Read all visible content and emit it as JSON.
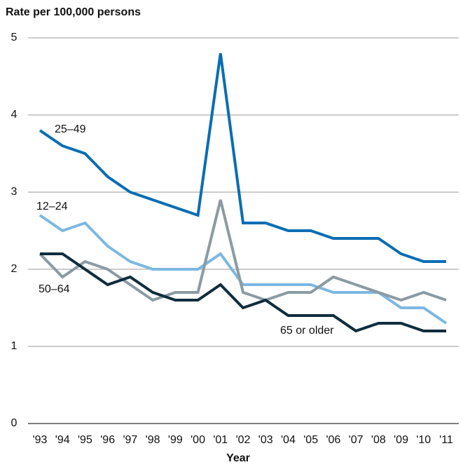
{
  "chart_data": {
    "type": "line",
    "ylabel": "Rate per 100,000 persons",
    "xlabel": "Year",
    "categories": [
      "'93",
      "'94",
      "'95",
      "'96",
      "'97",
      "'98",
      "'99",
      "'00",
      "'01",
      "'02",
      "'03",
      "'04",
      "'05",
      "'06",
      "'07",
      "'08",
      "'09",
      "'10",
      "'11"
    ],
    "series": [
      {
        "name": "25–49",
        "color": "#0a6db3",
        "values": [
          3.8,
          3.6,
          3.5,
          3.2,
          3.0,
          2.9,
          2.8,
          2.7,
          4.8,
          2.6,
          2.6,
          2.5,
          2.5,
          2.4,
          2.4,
          2.4,
          2.2,
          2.1,
          2.1
        ]
      },
      {
        "name": "12–24",
        "color": "#7cb8e2",
        "values": [
          2.7,
          2.5,
          2.6,
          2.3,
          2.1,
          2.0,
          2.0,
          2.0,
          2.2,
          1.8,
          1.8,
          1.8,
          1.8,
          1.7,
          1.7,
          1.7,
          1.5,
          1.5,
          1.3
        ]
      },
      {
        "name": "50–64",
        "color": "#8b9ba3",
        "values": [
          2.2,
          1.9,
          2.1,
          2.0,
          1.8,
          1.6,
          1.7,
          1.7,
          2.9,
          1.7,
          1.6,
          1.7,
          1.7,
          1.9,
          1.8,
          1.7,
          1.6,
          1.7,
          1.6
        ]
      },
      {
        "name": "65 or older",
        "color": "#0f2d3d",
        "values": [
          2.2,
          2.2,
          2.0,
          1.8,
          1.9,
          1.7,
          1.6,
          1.6,
          1.8,
          1.5,
          1.6,
          1.4,
          1.4,
          1.4,
          1.2,
          1.3,
          1.3,
          1.2,
          1.2
        ]
      }
    ],
    "ylim": [
      0,
      5
    ],
    "yticks": [
      0,
      1,
      2,
      3,
      4,
      5
    ],
    "grid": true
  }
}
